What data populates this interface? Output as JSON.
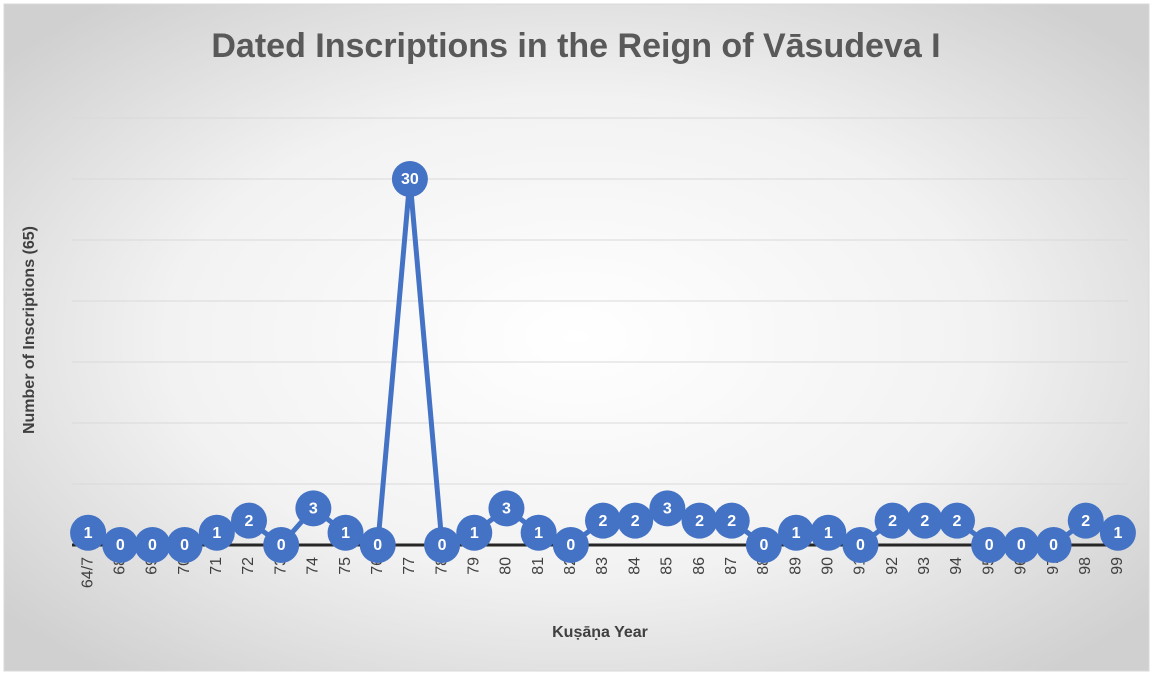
{
  "chart_data": {
    "type": "line",
    "title": "Dated Inscriptions in the Reign of Vāsudeva I",
    "x_label": "Kuṣāṇa Year",
    "y_label": "Number of Inscriptions (65)",
    "categories": [
      "64/7",
      "68",
      "69",
      "70",
      "71",
      "72",
      "73",
      "74",
      "75",
      "76",
      "77",
      "78",
      "79",
      "80",
      "81",
      "82",
      "83",
      "84",
      "85",
      "86",
      "87",
      "88",
      "89",
      "90",
      "91",
      "92",
      "93",
      "94",
      "95",
      "96",
      "97",
      "98",
      "99"
    ],
    "values": [
      1,
      0,
      0,
      0,
      1,
      2,
      0,
      3,
      1,
      0,
      30,
      0,
      1,
      3,
      1,
      0,
      2,
      2,
      3,
      2,
      2,
      0,
      1,
      1,
      0,
      2,
      2,
      2,
      0,
      0,
      0,
      2,
      1
    ],
    "color": "#4472c4",
    "ylim": [
      0,
      35
    ],
    "yticks": [
      0,
      5,
      10,
      15,
      20,
      25,
      30,
      35
    ],
    "grid": true
  }
}
